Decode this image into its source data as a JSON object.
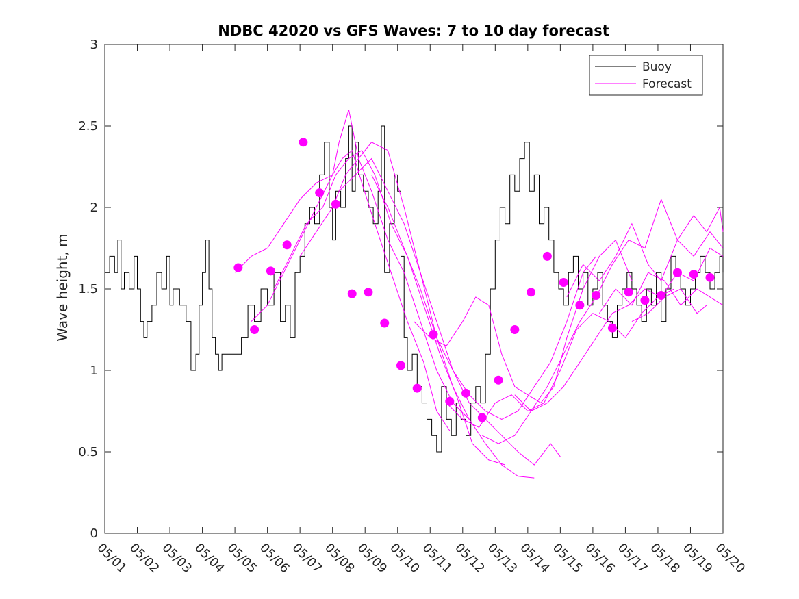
{
  "chart_data": {
    "type": "line",
    "title": "NDBC 42020 vs GFS Waves: 7 to 10 day forecast",
    "xlabel": "",
    "ylabel": "Wave height, m",
    "xlim": [
      0,
      19
    ],
    "ylim": [
      0,
      3
    ],
    "x_ticks": [
      0,
      1,
      2,
      3,
      4,
      5,
      6,
      7,
      8,
      9,
      10,
      11,
      12,
      13,
      14,
      15,
      16,
      17,
      18,
      19
    ],
    "x_tick_labels": [
      "05/01",
      "05/02",
      "05/03",
      "05/04",
      "05/05",
      "05/06",
      "05/07",
      "05/08",
      "05/09",
      "05/10",
      "05/11",
      "05/12",
      "05/13",
      "05/14",
      "05/15",
      "05/16",
      "05/17",
      "05/18",
      "05/19",
      "05/20"
    ],
    "y_ticks": [
      0,
      0.5,
      1,
      1.5,
      2,
      2.5,
      3
    ],
    "y_tick_labels": [
      "0",
      "0.5",
      "1",
      "1.5",
      "2",
      "2.5",
      "3"
    ],
    "grid": false,
    "legend_position": "top-right",
    "legend": [
      {
        "label": "Buoy",
        "color": "#000000"
      },
      {
        "label": "Forecast",
        "color": "#ff00ff"
      }
    ],
    "colors": {
      "buoy": "#000000",
      "forecast": "#ff00ff"
    },
    "series": [
      {
        "name": "Buoy",
        "kind": "observed",
        "x": [
          0.0,
          0.15,
          0.3,
          0.4,
          0.5,
          0.6,
          0.75,
          0.9,
          1.0,
          1.1,
          1.2,
          1.3,
          1.45,
          1.6,
          1.75,
          1.9,
          2.0,
          2.1,
          2.3,
          2.5,
          2.65,
          2.8,
          2.9,
          3.0,
          3.1,
          3.2,
          3.3,
          3.4,
          3.5,
          3.6,
          3.8,
          4.0,
          4.2,
          4.4,
          4.6,
          4.8,
          5.0,
          5.2,
          5.4,
          5.55,
          5.7,
          5.85,
          6.0,
          6.15,
          6.3,
          6.45,
          6.6,
          6.75,
          6.9,
          7.0,
          7.1,
          7.25,
          7.4,
          7.5,
          7.6,
          7.7,
          7.8,
          7.95,
          8.1,
          8.25,
          8.4,
          8.5,
          8.6,
          8.75,
          8.9,
          9.0,
          9.1,
          9.2,
          9.3,
          9.45,
          9.6,
          9.75,
          9.9,
          10.05,
          10.2,
          10.35,
          10.5,
          10.65,
          10.8,
          10.95,
          11.1,
          11.25,
          11.4,
          11.55,
          11.7,
          11.85,
          12.0,
          12.15,
          12.3,
          12.45,
          12.6,
          12.75,
          12.9,
          13.05,
          13.2,
          13.35,
          13.5,
          13.65,
          13.8,
          13.95,
          14.1,
          14.25,
          14.4,
          14.55,
          14.7,
          14.85,
          15.0,
          15.15,
          15.3,
          15.45,
          15.6,
          15.75,
          15.9,
          16.05,
          16.2,
          16.35,
          16.5,
          16.65,
          16.8,
          16.95,
          17.1,
          17.25,
          17.4,
          17.55,
          17.7,
          17.85,
          18.0,
          18.15,
          18.3,
          18.45,
          18.6,
          18.75,
          18.9,
          19.0
        ],
        "y": [
          1.6,
          1.7,
          1.6,
          1.8,
          1.5,
          1.6,
          1.5,
          1.7,
          1.5,
          1.3,
          1.2,
          1.3,
          1.4,
          1.6,
          1.5,
          1.7,
          1.4,
          1.5,
          1.4,
          1.3,
          1.0,
          1.1,
          1.4,
          1.6,
          1.8,
          1.5,
          1.2,
          1.1,
          1.0,
          1.1,
          1.1,
          1.1,
          1.2,
          1.4,
          1.3,
          1.5,
          1.4,
          1.6,
          1.3,
          1.4,
          1.2,
          1.6,
          1.7,
          1.9,
          2.0,
          1.9,
          2.2,
          2.4,
          2.0,
          1.8,
          2.1,
          2.0,
          2.3,
          2.5,
          2.1,
          2.4,
          2.2,
          2.1,
          2.0,
          1.9,
          2.1,
          2.5,
          1.6,
          1.9,
          2.2,
          2.1,
          1.7,
          1.2,
          1.0,
          1.1,
          0.9,
          0.8,
          0.7,
          0.6,
          0.5,
          0.9,
          0.7,
          0.6,
          0.8,
          0.7,
          0.6,
          0.8,
          0.9,
          0.8,
          1.1,
          1.5,
          1.8,
          2.0,
          1.9,
          2.2,
          2.1,
          2.3,
          2.4,
          2.1,
          2.2,
          1.9,
          2.0,
          1.8,
          1.6,
          1.5,
          1.4,
          1.6,
          1.7,
          1.5,
          1.6,
          1.4,
          1.5,
          1.6,
          1.4,
          1.3,
          1.2,
          1.4,
          1.5,
          1.6,
          1.5,
          1.4,
          1.3,
          1.5,
          1.4,
          1.6,
          1.3,
          1.5,
          1.7,
          1.6,
          1.5,
          1.4,
          1.5,
          1.6,
          1.7,
          1.6,
          1.5,
          1.6,
          1.7,
          1.6
        ]
      },
      {
        "name": "",
        "kind": "forecast",
        "x": [
          4.0,
          4.5,
          5.0,
          5.5,
          6.0,
          6.5,
          7.0,
          7.3,
          7.6,
          7.9,
          8.3,
          8.8,
          9.3,
          9.8,
          10.2,
          10.6
        ],
        "y": [
          1.6,
          1.7,
          1.75,
          1.9,
          2.05,
          2.15,
          2.2,
          2.3,
          2.35,
          2.15,
          1.9,
          1.6,
          1.3,
          1.05,
          0.75,
          0.63
        ]
      },
      {
        "name": "",
        "kind": "forecast",
        "x": [
          4.5,
          5.0,
          5.5,
          6.0,
          6.5,
          7.0,
          7.2,
          7.5,
          7.8,
          8.2,
          8.7,
          9.2,
          9.7,
          10.2,
          10.7,
          11.2
        ],
        "y": [
          1.3,
          1.4,
          1.6,
          1.8,
          2.0,
          2.2,
          2.4,
          2.6,
          2.3,
          2.1,
          1.8,
          1.6,
          1.3,
          1.0,
          0.8,
          0.7
        ]
      },
      {
        "name": "",
        "kind": "forecast",
        "x": [
          5.2,
          5.7,
          6.2,
          6.7,
          7.1,
          7.5,
          7.9,
          8.3,
          8.8,
          9.3,
          9.8,
          10.3,
          10.8,
          11.3,
          11.8,
          12.3
        ],
        "y": [
          1.5,
          1.7,
          1.9,
          2.0,
          2.2,
          2.3,
          2.35,
          2.2,
          1.9,
          1.7,
          1.4,
          1.1,
          0.85,
          0.55,
          0.45,
          0.42
        ]
      },
      {
        "name": "",
        "kind": "forecast",
        "x": [
          6.0,
          6.5,
          7.0,
          7.4,
          7.8,
          8.2,
          8.7,
          9.2,
          9.7,
          10.2,
          10.7,
          11.2,
          11.7,
          12.2,
          12.7,
          13.2
        ],
        "y": [
          1.7,
          1.85,
          2.0,
          2.2,
          2.3,
          2.4,
          2.35,
          2.0,
          1.6,
          1.2,
          0.9,
          0.7,
          0.55,
          0.42,
          0.35,
          0.34
        ]
      },
      {
        "name": "",
        "kind": "forecast",
        "x": [
          7.2,
          7.7,
          8.2,
          8.7,
          9.2,
          9.7,
          10.2,
          10.7,
          11.2,
          11.7,
          12.2,
          12.7,
          13.2,
          13.7,
          14.0
        ],
        "y": [
          2.1,
          2.2,
          2.3,
          2.1,
          1.9,
          1.6,
          1.3,
          1.0,
          0.8,
          0.7,
          0.6,
          0.5,
          0.42,
          0.55,
          0.47
        ]
      },
      {
        "name": "",
        "kind": "forecast",
        "x": [
          8.2,
          8.7,
          9.2,
          9.7,
          10.2,
          10.7,
          11.2,
          11.7,
          12.2,
          12.7,
          13.2,
          13.7,
          14.2,
          14.7,
          15.1
        ],
        "y": [
          2.2,
          2.0,
          1.75,
          1.5,
          1.2,
          1.0,
          0.85,
          0.75,
          0.7,
          0.75,
          0.9,
          1.05,
          1.3,
          1.6,
          1.7
        ]
      },
      {
        "name": "",
        "kind": "forecast",
        "x": [
          9.5,
          10.0,
          10.5,
          11.0,
          11.4,
          11.8,
          12.2,
          12.6,
          13.0,
          13.4,
          13.8,
          14.2,
          14.7,
          15.2,
          15.7,
          16.2
        ],
        "y": [
          1.3,
          1.2,
          1.15,
          1.3,
          1.45,
          1.4,
          1.1,
          0.9,
          0.85,
          0.8,
          0.9,
          1.2,
          1.5,
          1.7,
          1.8,
          1.55
        ]
      },
      {
        "name": "",
        "kind": "forecast",
        "x": [
          10.5,
          11.0,
          11.5,
          12.0,
          12.5,
          13.0,
          13.5,
          14.0,
          14.5,
          15.0,
          15.5,
          16.0,
          16.5,
          17.0,
          17.5
        ],
        "y": [
          0.8,
          0.7,
          0.65,
          0.8,
          0.85,
          0.75,
          0.8,
          1.0,
          1.25,
          1.35,
          1.3,
          1.2,
          1.35,
          1.45,
          1.5
        ]
      },
      {
        "name": "",
        "kind": "forecast",
        "x": [
          11.6,
          12.1,
          12.6,
          13.1,
          13.6,
          14.1,
          14.6,
          15.1,
          15.6,
          16.1,
          16.6,
          17.1,
          17.6,
          18.1,
          18.6,
          19.0
        ],
        "y": [
          0.6,
          0.55,
          0.6,
          0.75,
          0.8,
          0.9,
          1.05,
          1.2,
          1.35,
          1.4,
          1.5,
          1.45,
          1.6,
          1.55,
          1.75,
          1.7
        ]
      },
      {
        "name": "",
        "kind": "forecast",
        "x": [
          12.6,
          13.1,
          13.6,
          14.1,
          14.6,
          15.1,
          15.6,
          16.1,
          16.6,
          17.1,
          17.6,
          18.1,
          18.6,
          19.0
        ],
        "y": [
          0.85,
          0.75,
          0.9,
          1.1,
          1.3,
          1.45,
          1.65,
          1.8,
          1.75,
          2.05,
          1.8,
          1.7,
          1.85,
          1.75
        ]
      },
      {
        "name": "",
        "kind": "forecast",
        "x": [
          14.2,
          14.7,
          15.2,
          15.7,
          16.2,
          16.7,
          17.1,
          17.6,
          18.1,
          18.5,
          18.9,
          19.0
        ],
        "y": [
          1.45,
          1.65,
          1.55,
          1.7,
          1.9,
          1.65,
          1.55,
          1.8,
          1.95,
          1.85,
          2.0,
          1.85
        ]
      },
      {
        "name": "",
        "kind": "forecast",
        "x": [
          15.2,
          15.7,
          16.2,
          16.7,
          17.2,
          17.7,
          18.2,
          18.6,
          19.0
        ],
        "y": [
          1.35,
          1.5,
          1.4,
          1.6,
          1.55,
          1.4,
          1.5,
          1.45,
          1.4
        ]
      },
      {
        "name": "",
        "kind": "forecast",
        "x": [
          16.2,
          16.7,
          17.2,
          17.7,
          18.2,
          18.5
        ],
        "y": [
          1.3,
          1.35,
          1.45,
          1.5,
          1.35,
          1.4
        ]
      },
      {
        "name": "",
        "kind": "analysis_points",
        "x": [
          4.1,
          4.6,
          5.1,
          5.6,
          6.1,
          6.6,
          7.1,
          7.6,
          8.1,
          8.6,
          9.1,
          9.6,
          10.1,
          10.6,
          11.1,
          11.6,
          12.1,
          12.6,
          13.1,
          13.6,
          14.1,
          14.6,
          15.1,
          15.6,
          16.1,
          16.6,
          17.1,
          17.6,
          18.1,
          18.6
        ],
        "y": [
          1.63,
          1.25,
          1.61,
          1.77,
          2.4,
          2.09,
          2.02,
          1.47,
          1.48,
          1.29,
          1.03,
          0.89,
          1.22,
          0.81,
          0.86,
          0.71,
          0.94,
          1.25,
          1.48,
          1.7,
          1.54,
          1.4,
          1.46,
          1.26,
          1.48,
          1.43,
          1.46,
          1.6,
          1.59,
          1.57
        ]
      }
    ]
  }
}
